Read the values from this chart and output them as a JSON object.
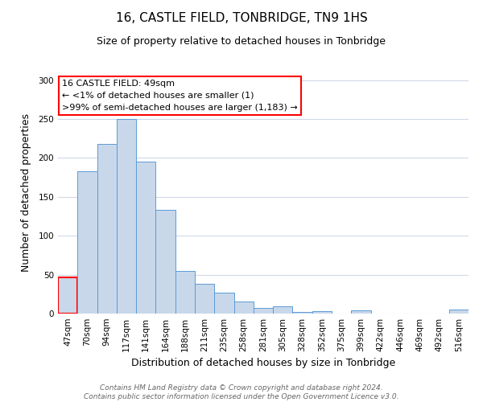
{
  "title": "16, CASTLE FIELD, TONBRIDGE, TN9 1HS",
  "subtitle": "Size of property relative to detached houses in Tonbridge",
  "xlabel": "Distribution of detached houses by size in Tonbridge",
  "ylabel": "Number of detached properties",
  "categories": [
    "47sqm",
    "70sqm",
    "94sqm",
    "117sqm",
    "141sqm",
    "164sqm",
    "188sqm",
    "211sqm",
    "235sqm",
    "258sqm",
    "281sqm",
    "305sqm",
    "328sqm",
    "352sqm",
    "375sqm",
    "399sqm",
    "422sqm",
    "446sqm",
    "469sqm",
    "492sqm",
    "516sqm"
  ],
  "values": [
    46,
    183,
    218,
    250,
    195,
    133,
    55,
    38,
    27,
    16,
    7,
    9,
    2,
    3,
    0,
    4,
    0,
    0,
    0,
    0,
    5
  ],
  "bar_color": "#c8d8ea",
  "bar_edge_color": "#5b9bd5",
  "highlight_color": "#ff0000",
  "highlight_index": 0,
  "ylim": [
    0,
    310
  ],
  "yticks": [
    0,
    50,
    100,
    150,
    200,
    250,
    300
  ],
  "annotation_box_text": [
    "16 CASTLE FIELD: 49sqm",
    "← <1% of detached houses are smaller (1)",
    ">99% of semi-detached houses are larger (1,183) →"
  ],
  "annotation_box_color": "#ffffff",
  "annotation_box_edge_color": "#ff0000",
  "footer_line1": "Contains HM Land Registry data © Crown copyright and database right 2024.",
  "footer_line2": "Contains public sector information licensed under the Open Government Licence v3.0.",
  "background_color": "#ffffff",
  "grid_color": "#d0d8e8",
  "title_fontsize": 11,
  "subtitle_fontsize": 9,
  "axis_label_fontsize": 9,
  "tick_label_fontsize": 7.5,
  "footer_fontsize": 6.5,
  "annotation_fontsize": 8
}
